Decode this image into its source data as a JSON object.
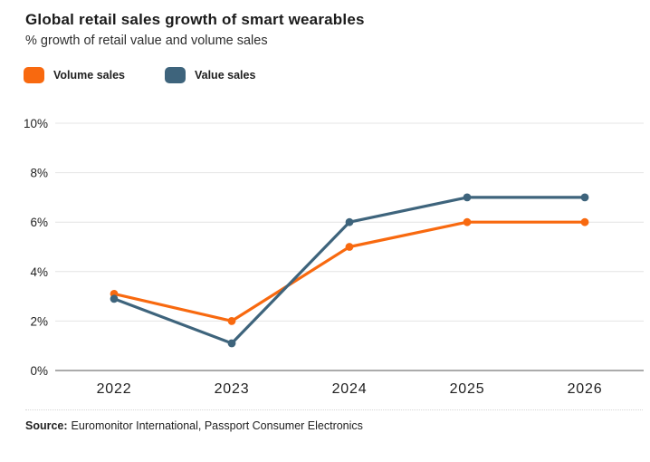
{
  "header": {
    "title": "Global retail sales growth of smart wearables",
    "subtitle": "% growth of retail value and volume sales"
  },
  "chart_data": {
    "type": "line",
    "title": "Global retail sales growth of smart wearables",
    "subtitle": "% growth of retail value and volume sales",
    "categories": [
      "2022",
      "2023",
      "2024",
      "2025",
      "2026"
    ],
    "series": [
      {
        "name": "Volume sales",
        "color": "#f8690f",
        "values": [
          3.1,
          2.0,
          5.0,
          6.0,
          6.0
        ]
      },
      {
        "name": "Value sales",
        "color": "#3e647c",
        "values": [
          2.9,
          1.1,
          6.0,
          7.0,
          7.0
        ]
      }
    ],
    "xlabel": "",
    "ylabel": "",
    "ylim": [
      0,
      10
    ],
    "yticks": [
      0,
      2,
      4,
      6,
      8,
      10
    ],
    "ytick_labels": [
      "0%",
      "2%",
      "4%",
      "6%",
      "8%",
      "10%"
    ],
    "grid": "horizontal",
    "grid_color": "#e4e4e4",
    "axis_color": "#8f8f8f",
    "legend_position": "top-left"
  },
  "source": {
    "label": "Source:",
    "text": "Euromonitor International, Passport Consumer Electronics"
  }
}
